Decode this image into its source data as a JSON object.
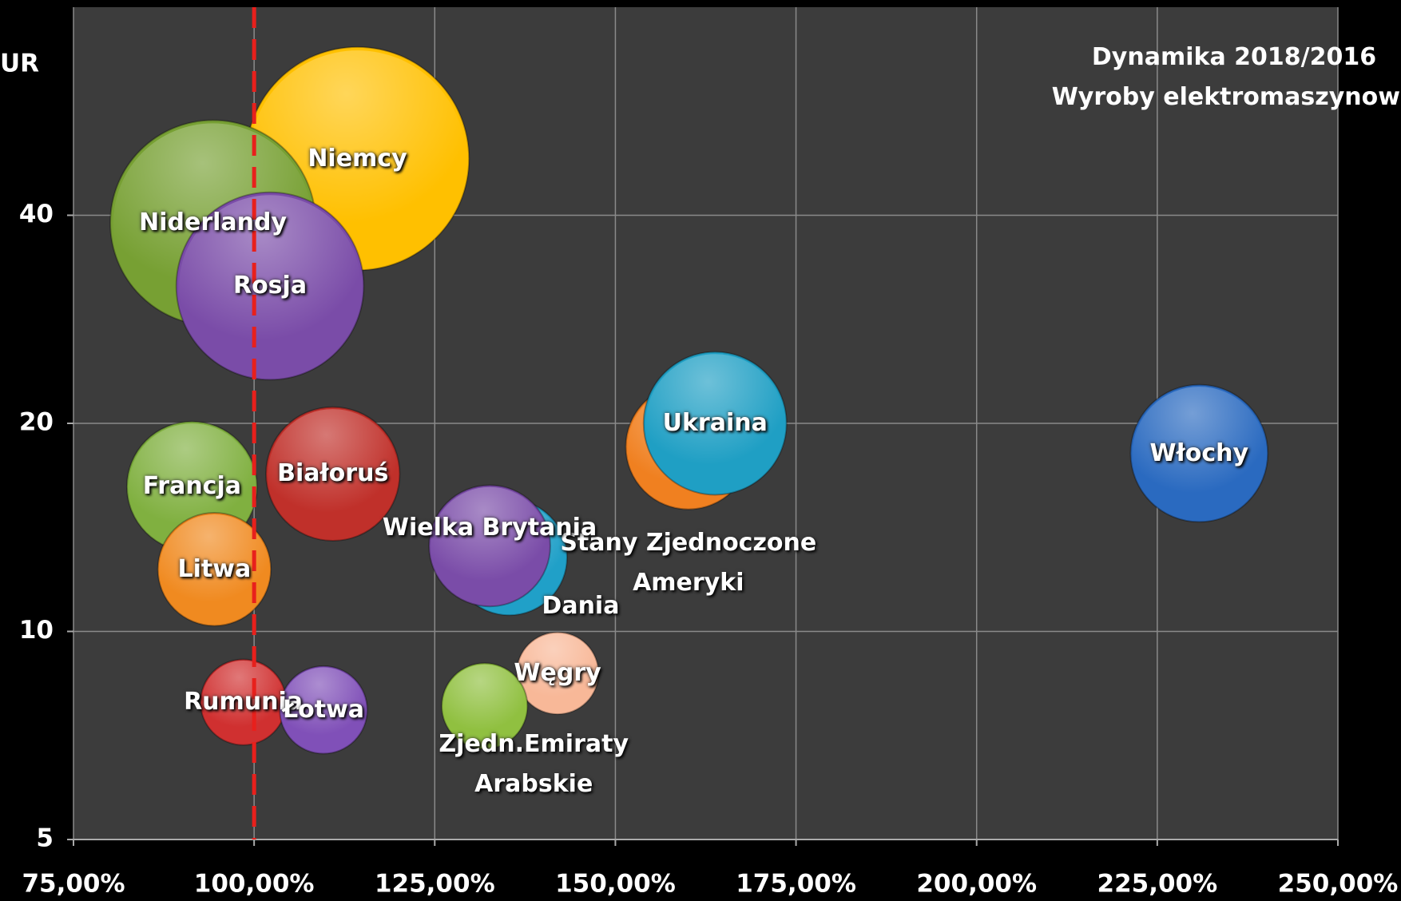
{
  "chart_data": {
    "type": "bubble",
    "title": "Dynamika 2018/2016",
    "subtitle": "Wyroby elektromaszynowe",
    "ylabel": "UR",
    "log_y": true,
    "grid": true,
    "reference_x": 100,
    "reference_color": "#e8201c",
    "xlim": [
      75,
      250
    ],
    "ylim": [
      5,
      80
    ],
    "xticks": [
      {
        "value": 75,
        "label": "75,00%"
      },
      {
        "value": 100,
        "label": "100,00%"
      },
      {
        "value": 125,
        "label": "125,00%"
      },
      {
        "value": 150,
        "label": "150,00%"
      },
      {
        "value": 175,
        "label": "175,00%"
      },
      {
        "value": 200,
        "label": "200,00%"
      },
      {
        "value": 225,
        "label": "225,00%"
      },
      {
        "value": 250,
        "label": "250,00%"
      }
    ],
    "yticks": [
      5,
      10,
      20,
      40
    ],
    "points": [
      {
        "name": "Niemcy",
        "color": "#ffc000",
        "x": 114.3,
        "y": 48.3,
        "size": 156
      },
      {
        "name": "Niderlandy",
        "color": "#77a033",
        "x": 94.3,
        "y": 39.0,
        "size": 132
      },
      {
        "name": "Rosja",
        "color": "#7a4ca8",
        "x": 102.2,
        "y": 31.6,
        "size": 110
      },
      {
        "name": "Stany Zjednoczone Ameryki",
        "color": "#f08020",
        "x": 160.1,
        "y": 18.5,
        "size": 49
      },
      {
        "name": "Ukraina",
        "color": "#1f9fc4",
        "x": 163.8,
        "y": 20.0,
        "size": 64
      },
      {
        "name": "Włochy",
        "color": "#2a6ac0",
        "x": 230.8,
        "y": 18.1,
        "size": 59
      },
      {
        "name": "Białoruś",
        "color": "#c0302a",
        "x": 110.9,
        "y": 16.9,
        "size": 56
      },
      {
        "name": "Francja",
        "color": "#80b040",
        "x": 91.4,
        "y": 16.2,
        "size": 53
      },
      {
        "name": "Litwa",
        "color": "#f08a20",
        "x": 94.5,
        "y": 12.3,
        "size": 40
      },
      {
        "name": "Dania",
        "color": "#20a0c8",
        "x": 135.3,
        "y": 12.8,
        "size": 42
      },
      {
        "name": "Wielka Brytania",
        "color": "#7a4ca8",
        "x": 132.6,
        "y": 13.3,
        "size": 46
      },
      {
        "name": "Węgry",
        "color": "#f8b898",
        "x": 142.0,
        "y": 8.7,
        "size": 21
      },
      {
        "name": "Zjedn.Emiraty Arabskie",
        "color": "#90c040",
        "x": 131.9,
        "y": 7.8,
        "size": 23
      },
      {
        "name": "Rumunia",
        "color": "#d03030",
        "x": 98.5,
        "y": 7.9,
        "size": 23
      },
      {
        "name": "Łotwa",
        "color": "#8050b8",
        "x": 109.6,
        "y": 7.7,
        "size": 24
      }
    ]
  }
}
